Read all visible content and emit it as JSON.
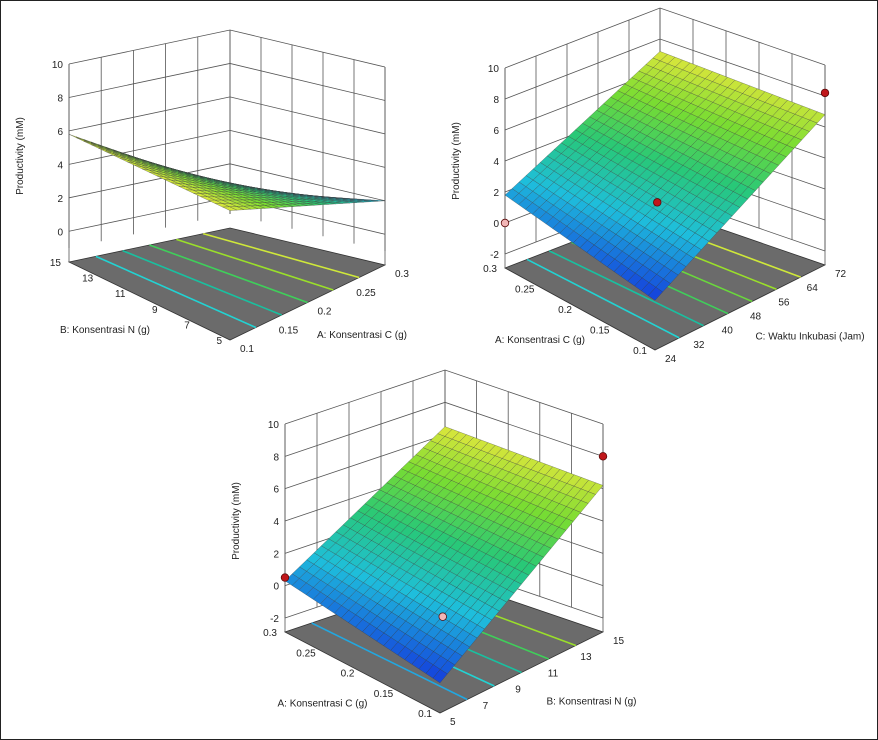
{
  "chart_data": [
    {
      "type": "surface",
      "zlabel": "Productivity (mM)",
      "zticks": [
        "0",
        "2",
        "4",
        "6",
        "8",
        "10"
      ],
      "zlim": [
        -1,
        10
      ],
      "x1": {
        "label": "A: Konsentrasi C (g)",
        "ticks": [
          "0.1",
          "0.15",
          "0.2",
          "0.25",
          "0.3"
        ],
        "range": [
          0.1,
          0.3
        ]
      },
      "x2": {
        "label": "B: Konsentrasi N (g)",
        "ticks": [
          "5",
          "7",
          "9",
          "11",
          "13",
          "15"
        ],
        "range": [
          5,
          15
        ]
      },
      "surface_corners": {
        "A0.1_B15": 5.8,
        "A0.3_B15": 5.9,
        "A0.1_B5": 2.0,
        "A0.3_B5": 0.4
      },
      "contour_colors": [
        "#22d3d3",
        "#19c0a0",
        "#3fcf5a",
        "#9adf2a",
        "#cfe83a"
      ],
      "design_points": []
    },
    {
      "type": "surface",
      "zlabel": "Productivity (mM)",
      "zticks": [
        "-2",
        "0",
        "2",
        "4",
        "6",
        "8",
        "10"
      ],
      "zlim": [
        -2,
        10
      ],
      "x1": {
        "label": "A: Konsentrasi C (g)",
        "ticks": [
          "0.1",
          "0.15",
          "0.2",
          "0.25",
          "0.3"
        ],
        "range": [
          0.1,
          0.3
        ]
      },
      "x2": {
        "label": "C: Waktu Inkubasi (Jam)",
        "ticks": [
          "24",
          "32",
          "40",
          "48",
          "56",
          "64",
          "72"
        ],
        "range": [
          24,
          72
        ]
      },
      "surface_corners": {
        "A0.3_C24": 1.8,
        "A0.1_C24": 0.3,
        "A0.1_C72": 6.8,
        "A0.3_C72": 7.2
      },
      "contour_colors": [
        "#22d3d3",
        "#19c0a0",
        "#3fcf5a",
        "#6ad83c",
        "#9adf2a",
        "#cfe83a"
      ],
      "design_points": [
        {
          "label": "above",
          "color": "#c0171b",
          "z": 8.2
        },
        {
          "label": "above",
          "color": "#c0171b",
          "z": 2.5
        },
        {
          "label": "below",
          "color": "#f2b6b6",
          "z": 0.0
        }
      ]
    },
    {
      "type": "surface",
      "zlabel": "Productivity (mM)",
      "zticks": [
        "-2",
        "0",
        "2",
        "4",
        "6",
        "8",
        "10"
      ],
      "zlim": [
        -2,
        10
      ],
      "x1": {
        "label": "A: Konsentrasi C (g)",
        "ticks": [
          "0.1",
          "0.15",
          "0.2",
          "0.25",
          "0.3"
        ],
        "range": [
          0.1,
          0.3
        ]
      },
      "x2": {
        "label": "B: Konsentrasi N (g)",
        "ticks": [
          "5",
          "7",
          "9",
          "11",
          "13",
          "15"
        ],
        "range": [
          5,
          15
        ]
      },
      "surface_corners": {
        "A0.3_B5": 0.3,
        "A0.1_B5": -1.0,
        "A0.1_B15": 6.2,
        "A0.3_B15": 6.5
      },
      "contour_colors": [
        "#22a7e0",
        "#22d3d3",
        "#19c0a0",
        "#3fcf5a",
        "#9adf2a"
      ],
      "design_points": [
        {
          "label": "above",
          "color": "#c0171b",
          "z": 8.0
        },
        {
          "label": "above",
          "color": "#c0171b",
          "z": 0.5
        },
        {
          "label": "below",
          "color": "#f2b6b6",
          "z": -1.5
        }
      ]
    }
  ]
}
